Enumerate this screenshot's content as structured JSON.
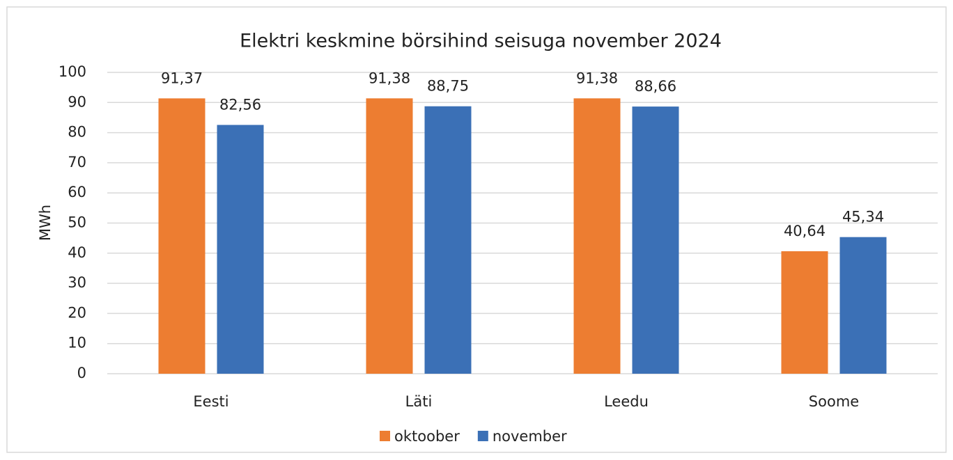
{
  "chart_data": {
    "type": "bar",
    "title": "Elektri keskmine börsihind seisuga november 2024",
    "ylabel": "MWh",
    "categories": [
      "Eesti",
      "Läti",
      "Leedu",
      "Soome"
    ],
    "series": [
      {
        "name": "oktoober",
        "color": "#ED7D31",
        "values": [
          91.37,
          91.38,
          91.38,
          40.64
        ],
        "value_labels": [
          "91,37",
          "91,38",
          "91,38",
          "40,64"
        ]
      },
      {
        "name": "november",
        "color": "#3B70B6",
        "values": [
          82.56,
          88.75,
          88.66,
          45.34
        ],
        "value_labels": [
          "82,56",
          "88,75",
          "88,66",
          "45,34"
        ]
      }
    ],
    "ylim": [
      0,
      100
    ],
    "yticks": [
      0,
      10,
      20,
      30,
      40,
      50,
      60,
      70,
      80,
      90,
      100
    ],
    "grid": true,
    "legend": "bottom"
  }
}
